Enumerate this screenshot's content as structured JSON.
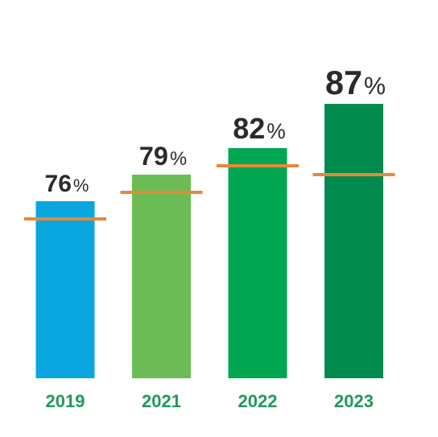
{
  "chart_data": {
    "type": "bar",
    "title": "",
    "xlabel": "",
    "ylabel": "",
    "categories": [
      "2019",
      "2021",
      "2022",
      "2023"
    ],
    "values": [
      76,
      79,
      82,
      87
    ],
    "value_labels": [
      "76",
      "79",
      "82",
      "87"
    ],
    "value_unit": "%",
    "reference_values": [
      74,
      77,
      80,
      79
    ],
    "reference_line_color": "#e8883a",
    "bar_colors": [
      "#0aa6e0",
      "#6bbc54",
      "#00a651",
      "#008a4e"
    ],
    "value_label_color": "#2b2b2b",
    "category_label_color": "#1f9a5a",
    "value_label_emphasis": [
      1,
      1.08,
      1.2,
      1.38
    ],
    "ylim": [
      56,
      90
    ],
    "grid": false,
    "legend": "none"
  }
}
